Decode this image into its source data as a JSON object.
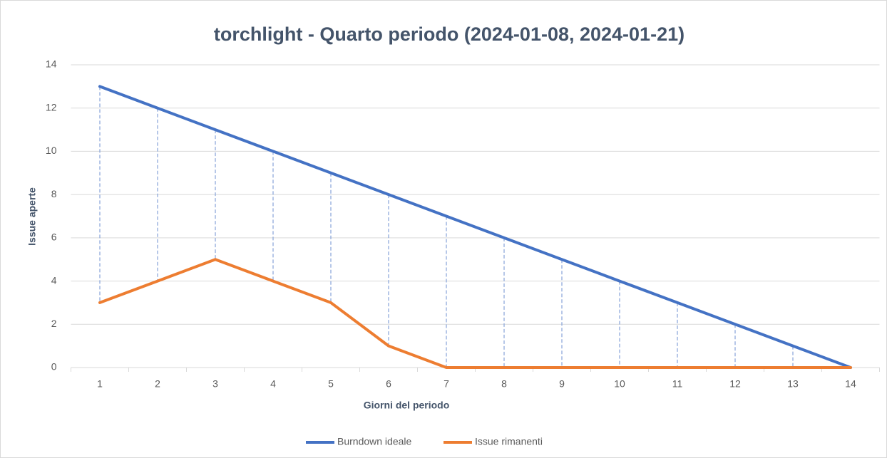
{
  "chart_data": {
    "type": "line",
    "title": "torchlight - Quarto periodo (2024-01-08, 2024-01-21)",
    "x_label": "Giorni del periodo",
    "y_label": "Issue aperte",
    "categories": [
      1,
      2,
      3,
      4,
      5,
      6,
      7,
      8,
      9,
      10,
      11,
      12,
      13,
      14
    ],
    "series": [
      {
        "name": "Burndown ideale",
        "color": "#4472c4",
        "values": [
          13,
          12,
          11,
          10,
          9,
          8,
          7,
          6,
          5,
          4,
          3,
          2,
          1,
          0
        ]
      },
      {
        "name": "Issue rimanenti",
        "color": "#ed7d31",
        "values": [
          3,
          4,
          5,
          4,
          3,
          1,
          0,
          0,
          0,
          0,
          0,
          0,
          0,
          0
        ]
      }
    ],
    "high_low_lines": true,
    "ylim": [
      0,
      14
    ],
    "yticks": [
      0,
      2,
      4,
      6,
      8,
      10,
      12,
      14
    ],
    "grid": true,
    "legend": "bottom"
  }
}
